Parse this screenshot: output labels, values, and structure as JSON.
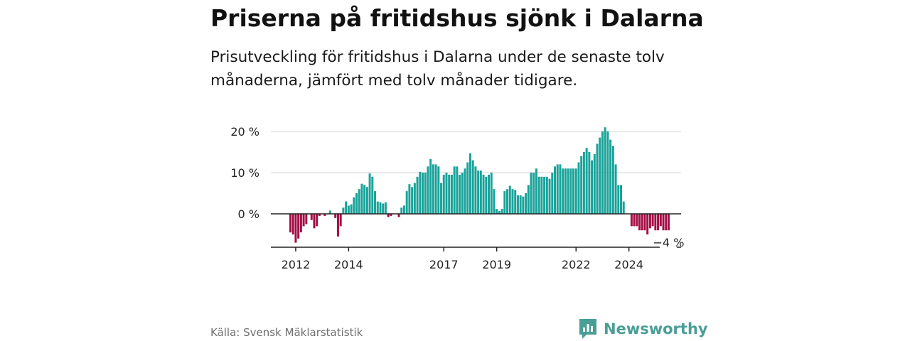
{
  "title": "Priserna på fritidshus sjönk i Dalarna",
  "subtitle": "Prisutveckling för fritidshus i Dalarna under de senaste tolv månaderna, jämfört med tolv månader tidigare.",
  "source": "Källa: Svensk Mäklarstatistik",
  "brand": {
    "name": "Newsworthy",
    "icon": "newsworthy-logo-icon"
  },
  "colors": {
    "positive": "#1aa39a",
    "negative": "#a50f45",
    "grid": "#d9d9d9",
    "axis": "#222222"
  },
  "chart_data": {
    "type": "bar",
    "title": "Priserna på fritidshus sjönk i Dalarna",
    "xlabel": "",
    "ylabel": "",
    "unit": "%",
    "ylim": [
      -8,
      20
    ],
    "yticks": [
      {
        "value": 0,
        "label": "0 %"
      },
      {
        "value": 10,
        "label": "10 %"
      },
      {
        "value": 20,
        "label": "20 %"
      }
    ],
    "xticks": [
      {
        "index": 2,
        "label": "2012"
      },
      {
        "index": 22,
        "label": "2014"
      },
      {
        "index": 58,
        "label": "2017"
      },
      {
        "index": 78,
        "label": "2019"
      },
      {
        "index": 108,
        "label": "2022"
      },
      {
        "index": 128,
        "label": "2024"
      }
    ],
    "grid": true,
    "last_value_label": "−4 %",
    "values": [
      -4.5,
      -5,
      -7,
      -6,
      -4.5,
      -3,
      -2.5,
      0,
      -1.5,
      -3.5,
      -3,
      -0.5,
      0,
      -0.5,
      0,
      0.8,
      0,
      -1,
      -5.5,
      -3,
      1.5,
      3,
      2,
      2.3,
      4,
      5,
      6,
      7.3,
      7,
      6.5,
      9.8,
      9,
      5.5,
      3,
      2.8,
      2.5,
      2.8,
      -0.8,
      -0.5,
      0,
      0,
      -0.8,
      1.5,
      2,
      5.5,
      7.2,
      6.5,
      7.5,
      9,
      10.2,
      10,
      10,
      11.5,
      13.3,
      12,
      12,
      11.5,
      7.5,
      9.5,
      10,
      9.5,
      9.5,
      11.5,
      11.5,
      9.5,
      10,
      11,
      12.5,
      14.7,
      13,
      11.5,
      10.5,
      10.5,
      9.5,
      9,
      9.5,
      10,
      6,
      1.2,
      0.7,
      1.2,
      5.5,
      6,
      6.8,
      6,
      5.8,
      4.5,
      4.5,
      4.2,
      5,
      7,
      10,
      10,
      11,
      9,
      9,
      9,
      9,
      8.5,
      10,
      11.5,
      12,
      12,
      11,
      11,
      11,
      11,
      11,
      11,
      12.5,
      14,
      15,
      16,
      15,
      13,
      14.5,
      17,
      18.5,
      20,
      21,
      20,
      18,
      16.5,
      12,
      7,
      7,
      3,
      0,
      0,
      -3,
      -3,
      -3,
      -4,
      -4,
      -4,
      -5,
      -3.5,
      -3,
      -4,
      -4,
      -3,
      -4,
      -4,
      -4
    ]
  }
}
